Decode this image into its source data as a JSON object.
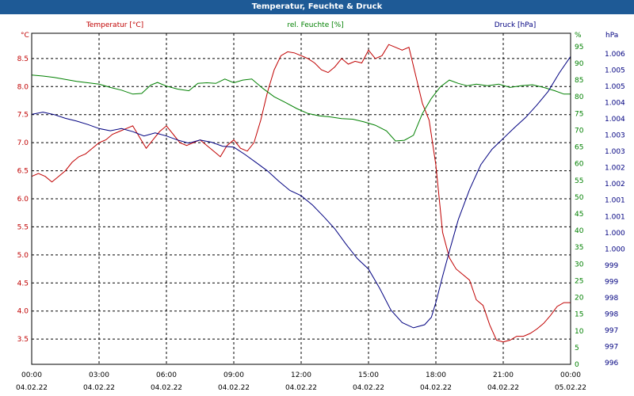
{
  "window": {
    "title": "Temperatur, Feuchte & Druck"
  },
  "chart_data": {
    "type": "line",
    "title": "Temperatur, Feuchte & Druck",
    "x": {
      "ticks": [
        {
          "time": "00:00",
          "date": "04.02.22"
        },
        {
          "time": "03:00",
          "date": "04.02.22"
        },
        {
          "time": "06:00",
          "date": "04.02.22"
        },
        {
          "time": "09:00",
          "date": "04.02.22"
        },
        {
          "time": "12:00",
          "date": "04.02.22"
        },
        {
          "time": "15:00",
          "date": "04.02.22"
        },
        {
          "time": "18:00",
          "date": "04.02.22"
        },
        {
          "time": "21:00",
          "date": "04.02.22"
        },
        {
          "time": "00:00",
          "date": "05.02.22"
        }
      ],
      "range_hours": [
        0,
        24
      ]
    },
    "axes": {
      "temperature": {
        "unit": "°C",
        "label": "Temperatur [°C]",
        "range": [
          3.05,
          8.95
        ],
        "ticks": [
          "3.5",
          "4.0",
          "4.5",
          "5.0",
          "5.5",
          "6.0",
          "6.5",
          "7.0",
          "7.5",
          "8.0",
          "8.5"
        ],
        "color": "#c00000"
      },
      "humidity": {
        "unit": "%",
        "label": "rel. Feuchte [%]",
        "range": [
          0,
          99
        ],
        "ticks": [
          "0",
          "5",
          "10",
          "15",
          "20",
          "25",
          "30",
          "35",
          "40",
          "45",
          "50",
          "55",
          "60",
          "65",
          "70",
          "75",
          "80",
          "85",
          "90",
          "95"
        ],
        "color": "#008000"
      },
      "pressure": {
        "unit": "hPa",
        "label": "Druck [hPa]",
        "range": [
          996.0,
          1006.7
        ],
        "ticks": [
          "996",
          "997",
          "997",
          "998",
          "998",
          "999",
          "999",
          "1.000",
          "1.000",
          "1.001",
          "1.001",
          "1.002",
          "1.002",
          "1.003",
          "1.003",
          "1.004",
          "1.004",
          "1.005",
          "1.005",
          "1.006"
        ],
        "color": "#000080"
      }
    },
    "series": [
      {
        "name": "Temperatur",
        "axis": "temperature",
        "points": [
          [
            0,
            6.4
          ],
          [
            0.3,
            6.45
          ],
          [
            0.6,
            6.4
          ],
          [
            0.9,
            6.3
          ],
          [
            1.2,
            6.4
          ],
          [
            1.5,
            6.5
          ],
          [
            1.8,
            6.65
          ],
          [
            2.1,
            6.75
          ],
          [
            2.4,
            6.8
          ],
          [
            2.7,
            6.9
          ],
          [
            3,
            7.0
          ],
          [
            3.3,
            7.05
          ],
          [
            3.6,
            7.15
          ],
          [
            3.9,
            7.2
          ],
          [
            4.2,
            7.25
          ],
          [
            4.5,
            7.3
          ],
          [
            4.8,
            7.1
          ],
          [
            5.1,
            6.9
          ],
          [
            5.4,
            7.05
          ],
          [
            5.7,
            7.2
          ],
          [
            6,
            7.3
          ],
          [
            6.3,
            7.15
          ],
          [
            6.6,
            7.0
          ],
          [
            6.9,
            6.95
          ],
          [
            7.2,
            7.0
          ],
          [
            7.5,
            7.05
          ],
          [
            7.8,
            6.95
          ],
          [
            8.1,
            6.85
          ],
          [
            8.4,
            6.75
          ],
          [
            8.7,
            6.95
          ],
          [
            9,
            7.05
          ],
          [
            9.3,
            6.9
          ],
          [
            9.6,
            6.85
          ],
          [
            9.9,
            7.0
          ],
          [
            10.2,
            7.4
          ],
          [
            10.5,
            7.9
          ],
          [
            10.8,
            8.3
          ],
          [
            11.1,
            8.55
          ],
          [
            11.4,
            8.62
          ],
          [
            11.7,
            8.6
          ],
          [
            12,
            8.55
          ],
          [
            12.3,
            8.5
          ],
          [
            12.6,
            8.42
          ],
          [
            12.9,
            8.3
          ],
          [
            13.2,
            8.25
          ],
          [
            13.5,
            8.35
          ],
          [
            13.8,
            8.5
          ],
          [
            14.1,
            8.4
          ],
          [
            14.4,
            8.45
          ],
          [
            14.7,
            8.42
          ],
          [
            15,
            8.65
          ],
          [
            15.3,
            8.5
          ],
          [
            15.6,
            8.55
          ],
          [
            15.9,
            8.75
          ],
          [
            16.2,
            8.7
          ],
          [
            16.5,
            8.65
          ],
          [
            16.8,
            8.7
          ],
          [
            17.1,
            8.2
          ],
          [
            17.4,
            7.7
          ],
          [
            17.7,
            7.4
          ],
          [
            18,
            6.6
          ],
          [
            18.3,
            5.4
          ],
          [
            18.6,
            4.95
          ],
          [
            18.9,
            4.75
          ],
          [
            19.2,
            4.65
          ],
          [
            19.5,
            4.55
          ],
          [
            19.8,
            4.2
          ],
          [
            20.1,
            4.1
          ],
          [
            20.4,
            3.75
          ],
          [
            20.7,
            3.48
          ],
          [
            21,
            3.45
          ],
          [
            21.3,
            3.48
          ],
          [
            21.6,
            3.55
          ],
          [
            21.9,
            3.55
          ],
          [
            22.2,
            3.6
          ],
          [
            22.5,
            3.68
          ],
          [
            22.8,
            3.78
          ],
          [
            23.1,
            3.92
          ],
          [
            23.4,
            4.08
          ],
          [
            23.7,
            4.15
          ],
          [
            24,
            4.15
          ]
        ]
      },
      {
        "name": "rel. Feuchte",
        "axis": "humidity",
        "points": [
          [
            0,
            86.5
          ],
          [
            0.5,
            86.2
          ],
          [
            1,
            85.8
          ],
          [
            1.5,
            85.2
          ],
          [
            2,
            84.6
          ],
          [
            2.5,
            84.2
          ],
          [
            3,
            83.8
          ],
          [
            3.5,
            82.8
          ],
          [
            4,
            82.0
          ],
          [
            4.5,
            80.8
          ],
          [
            4.9,
            81.0
          ],
          [
            5.3,
            83.5
          ],
          [
            5.6,
            84.3
          ],
          [
            6,
            83.2
          ],
          [
            6.5,
            82.3
          ],
          [
            7,
            81.8
          ],
          [
            7.4,
            84.0
          ],
          [
            7.8,
            84.2
          ],
          [
            8.2,
            84.0
          ],
          [
            8.6,
            85.3
          ],
          [
            9,
            84.2
          ],
          [
            9.4,
            85.0
          ],
          [
            9.8,
            85.3
          ],
          [
            10.3,
            82.5
          ],
          [
            10.8,
            80.0
          ],
          [
            11.3,
            78.3
          ],
          [
            11.8,
            76.5
          ],
          [
            12.3,
            75.0
          ],
          [
            12.8,
            74.3
          ],
          [
            13.3,
            74.0
          ],
          [
            13.8,
            73.5
          ],
          [
            14.3,
            73.3
          ],
          [
            14.8,
            72.5
          ],
          [
            15.3,
            71.5
          ],
          [
            15.8,
            69.8
          ],
          [
            16.2,
            66.8
          ],
          [
            16.6,
            67.0
          ],
          [
            17,
            68.5
          ],
          [
            17.4,
            75.0
          ],
          [
            17.8,
            79.5
          ],
          [
            18.2,
            83.0
          ],
          [
            18.6,
            85.0
          ],
          [
            19,
            84.0
          ],
          [
            19.4,
            83.3
          ],
          [
            19.8,
            83.8
          ],
          [
            20.3,
            83.3
          ],
          [
            20.8,
            83.8
          ],
          [
            21.3,
            82.8
          ],
          [
            21.8,
            83.3
          ],
          [
            22.3,
            83.6
          ],
          [
            22.8,
            82.8
          ],
          [
            23.3,
            81.8
          ],
          [
            23.7,
            80.8
          ],
          [
            24,
            80.8
          ]
        ]
      },
      {
        "name": "Druck",
        "axis": "pressure",
        "points": [
          [
            0,
            1004.08
          ],
          [
            0.5,
            1004.15
          ],
          [
            1,
            1004.07
          ],
          [
            1.5,
            1003.95
          ],
          [
            2,
            1003.86
          ],
          [
            2.5,
            1003.75
          ],
          [
            3,
            1003.62
          ],
          [
            3.5,
            1003.55
          ],
          [
            4,
            1003.62
          ],
          [
            4.5,
            1003.52
          ],
          [
            5,
            1003.38
          ],
          [
            5.5,
            1003.48
          ],
          [
            6,
            1003.38
          ],
          [
            6.5,
            1003.25
          ],
          [
            7,
            1003.15
          ],
          [
            7.5,
            1003.25
          ],
          [
            8,
            1003.18
          ],
          [
            8.5,
            1003.05
          ],
          [
            9,
            1003.02
          ],
          [
            9.5,
            1002.78
          ],
          [
            10,
            1002.52
          ],
          [
            10.5,
            1002.25
          ],
          [
            11,
            1001.92
          ],
          [
            11.5,
            1001.62
          ],
          [
            12,
            1001.45
          ],
          [
            12.5,
            1001.15
          ],
          [
            13,
            1000.78
          ],
          [
            13.5,
            1000.38
          ],
          [
            14,
            999.88
          ],
          [
            14.5,
            999.42
          ],
          [
            15,
            999.08
          ],
          [
            15.5,
            998.45
          ],
          [
            16,
            997.75
          ],
          [
            16.5,
            997.35
          ],
          [
            17,
            997.18
          ],
          [
            17.5,
            997.28
          ],
          [
            17.8,
            997.52
          ],
          [
            18,
            998.0
          ],
          [
            18.3,
            998.85
          ],
          [
            18.6,
            999.65
          ],
          [
            19,
            1000.68
          ],
          [
            19.5,
            1001.65
          ],
          [
            20,
            1002.45
          ],
          [
            20.5,
            1002.95
          ],
          [
            21,
            1003.3
          ],
          [
            21.5,
            1003.65
          ],
          [
            22,
            1003.98
          ],
          [
            22.5,
            1004.38
          ],
          [
            23,
            1004.82
          ],
          [
            23.5,
            1005.42
          ],
          [
            24,
            1005.95
          ]
        ]
      }
    ]
  }
}
